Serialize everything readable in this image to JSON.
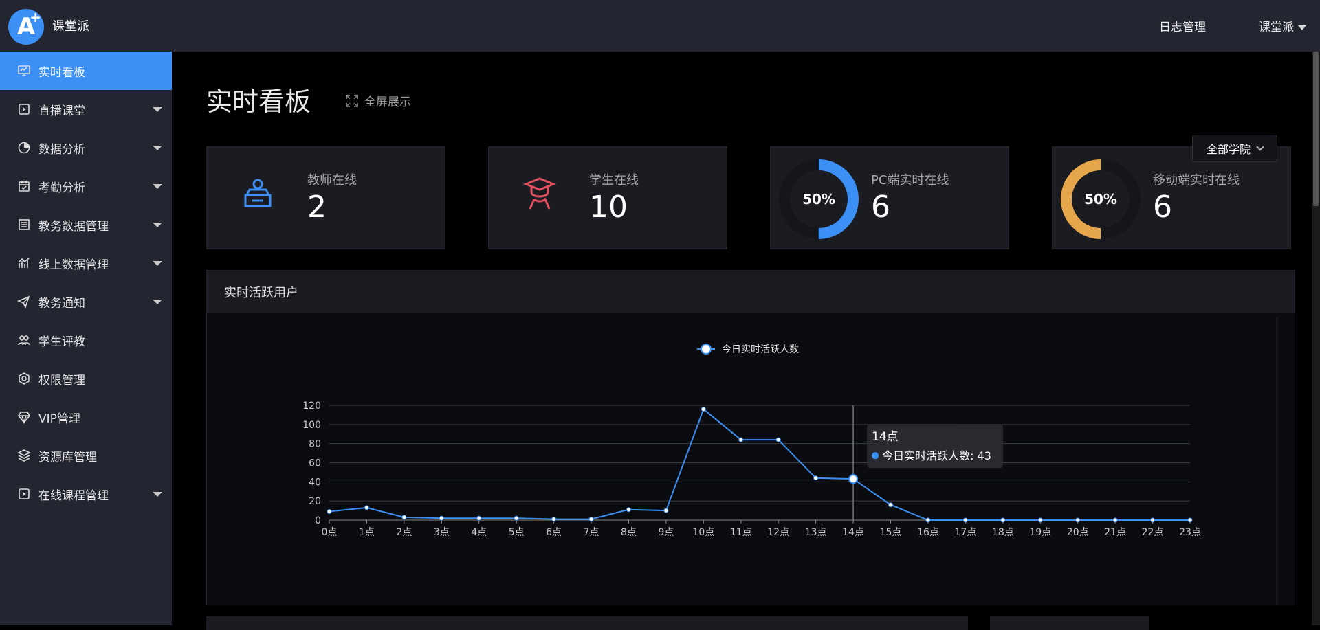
{
  "header": {
    "brand": "课堂派",
    "log_link": "日志管理",
    "user_menu": "课堂派"
  },
  "sidebar": {
    "items": [
      {
        "label": "实时看板",
        "icon": "monitor-icon",
        "active": true,
        "has_arrow": false
      },
      {
        "label": "直播课堂",
        "icon": "play-icon",
        "active": false,
        "has_arrow": true
      },
      {
        "label": "数据分析",
        "icon": "pie-icon",
        "active": false,
        "has_arrow": true
      },
      {
        "label": "考勤分析",
        "icon": "calendar-icon",
        "active": false,
        "has_arrow": true
      },
      {
        "label": "教务数据管理",
        "icon": "building-icon",
        "active": false,
        "has_arrow": true
      },
      {
        "label": "线上数据管理",
        "icon": "bar-chart-icon",
        "active": false,
        "has_arrow": true
      },
      {
        "label": "教务通知",
        "icon": "send-icon",
        "active": false,
        "has_arrow": true
      },
      {
        "label": "学生评教",
        "icon": "users-icon",
        "active": false,
        "has_arrow": false
      },
      {
        "label": "权限管理",
        "icon": "settings-icon",
        "active": false,
        "has_arrow": false
      },
      {
        "label": "VIP管理",
        "icon": "diamond-icon",
        "active": false,
        "has_arrow": false
      },
      {
        "label": "资源库管理",
        "icon": "layers-icon",
        "active": false,
        "has_arrow": false
      },
      {
        "label": "在线课程管理",
        "icon": "play-icon",
        "active": false,
        "has_arrow": true
      }
    ]
  },
  "main": {
    "title": "实时看板",
    "fullscreen_label": "全屏展示",
    "college_select": "全部学院"
  },
  "stats": {
    "teacher": {
      "label": "教师在线",
      "value": "2",
      "icon": "teacher-icon",
      "color": "#3c8ff5"
    },
    "student": {
      "label": "学生在线",
      "value": "10",
      "icon": "student-icon",
      "color": "#e4505f"
    },
    "pc": {
      "label": "PC端实时在线",
      "value": "6",
      "percent": "50%",
      "fraction": 0.5,
      "color": "#3c8ff5"
    },
    "mobile": {
      "label": "移动端实时在线",
      "value": "6",
      "percent": "50%",
      "fraction": 0.5,
      "color": "#e6a64b"
    }
  },
  "panel": {
    "title": "实时活跃用户"
  },
  "chart_data": {
    "type": "line",
    "legend": "今日实时活跃人数",
    "categories": [
      "0点",
      "1点",
      "2点",
      "3点",
      "4点",
      "5点",
      "6点",
      "7点",
      "8点",
      "9点",
      "10点",
      "11点",
      "12点",
      "13点",
      "14点",
      "15点",
      "16点",
      "17点",
      "18点",
      "19点",
      "20点",
      "21点",
      "22点",
      "23点"
    ],
    "series": [
      {
        "name": "今日实时活跃人数",
        "values": [
          9,
          13,
          3,
          2,
          2,
          2,
          1,
          1,
          11,
          10,
          116,
          84,
          84,
          44,
          43,
          16,
          0,
          0,
          0,
          0,
          0,
          0,
          0,
          0
        ]
      }
    ],
    "yticks": [
      "0",
      "20",
      "40",
      "60",
      "80",
      "100",
      "120"
    ],
    "ylim": [
      0,
      120
    ],
    "grid": true,
    "line_color": "#3c8ff5",
    "tooltip": {
      "title": "14点",
      "text": "今日实时活跃人数: 43",
      "index": 14
    }
  }
}
